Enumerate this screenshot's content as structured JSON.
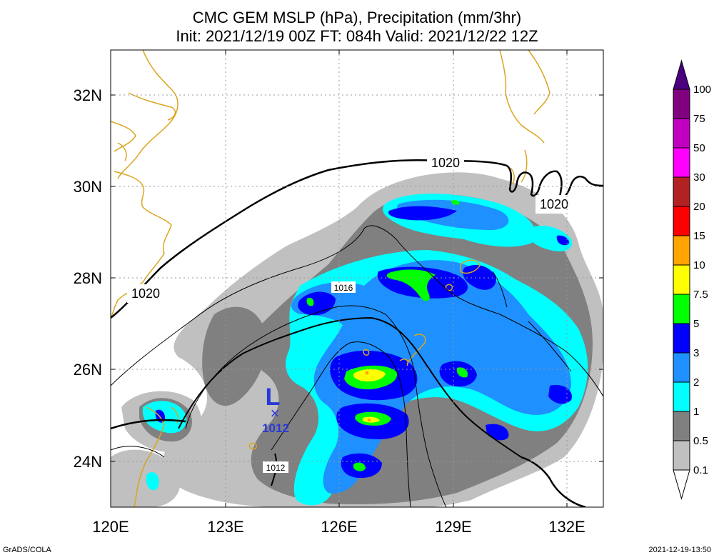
{
  "title": {
    "line1": "CMC GEM MSLP (hPa), Precipitation (mm/3hr)",
    "line2": "Init: 2021/12/19 00Z  FT: 084h  Valid: 2021/12/22 12Z"
  },
  "axes": {
    "x_ticks": [
      "120E",
      "123E",
      "126E",
      "129E",
      "132E"
    ],
    "y_ticks": [
      "32N",
      "30N",
      "28N",
      "26N",
      "24N"
    ]
  },
  "colorbar": {
    "labels": [
      "0.1",
      "0.5",
      "1",
      "2",
      "3",
      "5",
      "7.5",
      "10",
      "15",
      "20",
      "30",
      "50",
      "75",
      "100"
    ],
    "colors": [
      "#ffffff",
      "#c0c0c0",
      "#808080",
      "#00ffff",
      "#1e90ff",
      "#0000ff",
      "#00ff00",
      "#ffff00",
      "#ffa500",
      "#ff0000",
      "#b22222",
      "#ff00ff",
      "#c000c0",
      "#800080",
      "#4b0082"
    ]
  },
  "isobar_labels": [
    {
      "text": "1020",
      "name": "isobar-label-1020-top"
    },
    {
      "text": "1020",
      "name": "isobar-label-1020-right"
    },
    {
      "text": "1020",
      "name": "isobar-label-1020-left"
    },
    {
      "text": "1016",
      "name": "isobar-label-1016"
    },
    {
      "text": "1012",
      "name": "isobar-label-1012"
    }
  ],
  "low_center": {
    "letter": "L",
    "marker": "×",
    "value": "1012"
  },
  "footer": {
    "left": "GrADS/COLA",
    "right": "2021-12-19-13:50"
  }
}
